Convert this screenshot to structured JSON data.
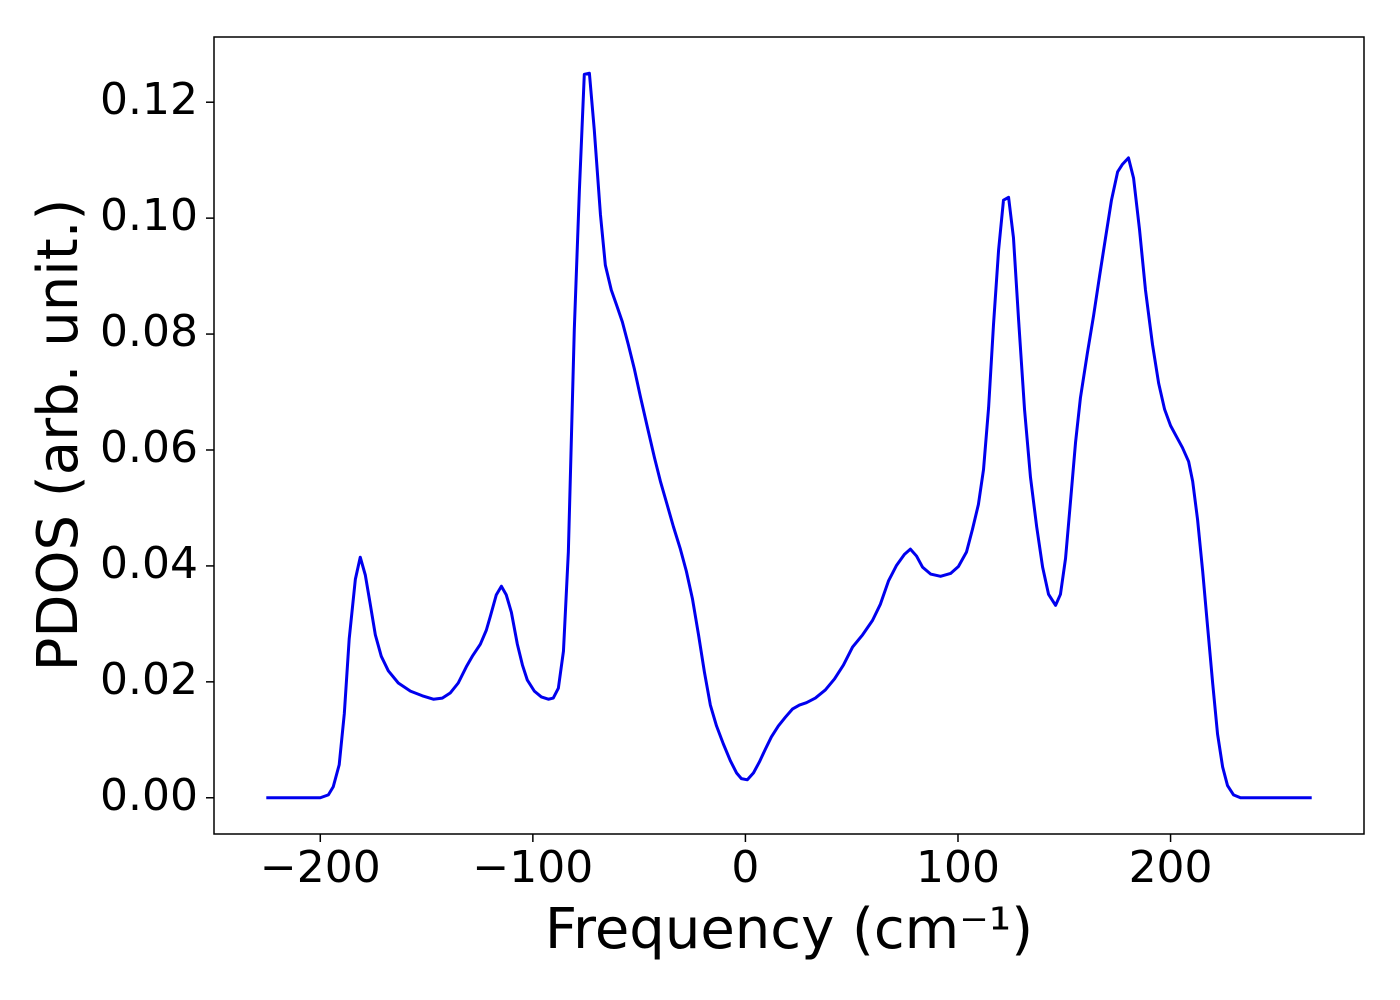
{
  "chart_data": {
    "type": "line",
    "xlabel": "Frequency (cm⁻¹)",
    "ylabel": "PDOS (arb. unit.)",
    "xlim": [
      -250,
      291
    ],
    "ylim": [
      -0.00625,
      0.13125
    ],
    "xticks": [
      {
        "value": -200,
        "label": "−200"
      },
      {
        "value": -100,
        "label": "−100"
      },
      0,
      100,
      200
    ],
    "yticks": [
      {
        "value": 0,
        "label": "0.00"
      },
      0.02,
      0.04,
      0.06,
      0.08,
      {
        "value": 0.1,
        "label": "0.10"
      },
      0.12
    ],
    "grid": false,
    "series": [
      {
        "color": "#0000ee",
        "x": [
          -225.4,
          -200,
          -196.2,
          -193.9,
          -191.1,
          -188.7,
          -186.4,
          -183.5,
          -181.2,
          -178.8,
          -176.5,
          -174.1,
          -171.3,
          -168,
          -163.3,
          -157.6,
          -152,
          -146.8,
          -142.6,
          -138.8,
          -135.1,
          -131.3,
          -128.5,
          -124.7,
          -121.9,
          -120,
          -117.2,
          -114.8,
          -112.5,
          -110.1,
          -107.3,
          -104.9,
          -102.6,
          -99.3,
          -96,
          -92.7,
          -90.4,
          -88,
          -85.6,
          -83.3,
          -80.5,
          -78.1,
          -75.8,
          -73.4,
          -71.1,
          -68.2,
          -65.9,
          -63.1,
          -60.7,
          -57.9,
          -55.1,
          -52.2,
          -49.4,
          -46.1,
          -42.8,
          -40,
          -36.7,
          -33.9,
          -30.6,
          -27.8,
          -24.9,
          -22.1,
          -19.3,
          -16.5,
          -13.6,
          -10.4,
          -7.1,
          -4.2,
          -1.9,
          0.9,
          3.8,
          6.6,
          9.4,
          12.2,
          15.5,
          18.8,
          22.1,
          25.4,
          28.7,
          32.9,
          37.6,
          41.9,
          46.1,
          50.4,
          55.1,
          59.8,
          63.5,
          67.3,
          71.1,
          74.8,
          77.6,
          80.5,
          83.3,
          87.1,
          91.8,
          96.5,
          100.2,
          104,
          106.8,
          109.6,
          112,
          114.4,
          116.7,
          119.1,
          121.4,
          123.8,
          126.1,
          128.5,
          131.3,
          134.1,
          137,
          139.8,
          142.6,
          145.9,
          148.2,
          150.6,
          152.9,
          155.3,
          157.6,
          160.9,
          163.8,
          166.6,
          169.4,
          172.2,
          175.1,
          177.4,
          180.2,
          182.6,
          185.4,
          188.2,
          191.5,
          194.4,
          197.2,
          200,
          202.8,
          205.6,
          208.5,
          210.4,
          212.7,
          215.1,
          217.4,
          219.8,
          222.1,
          224.5,
          226.8,
          229.6,
          232.9,
          266.4
        ],
        "values": [
          0,
          0,
          0.0005,
          0.0019,
          0.0057,
          0.0145,
          0.0274,
          0.0377,
          0.0415,
          0.0384,
          0.0334,
          0.0281,
          0.0244,
          0.0219,
          0.0198,
          0.0184,
          0.0176,
          0.017,
          0.0172,
          0.0181,
          0.0198,
          0.0226,
          0.0244,
          0.0265,
          0.0289,
          0.0313,
          0.035,
          0.0365,
          0.035,
          0.032,
          0.0265,
          0.0229,
          0.0203,
          0.0184,
          0.0174,
          0.017,
          0.0172,
          0.0189,
          0.0253,
          0.0424,
          0.0808,
          0.1049,
          0.1248,
          0.125,
          0.1152,
          0.1006,
          0.0919,
          0.0876,
          0.0851,
          0.0821,
          0.0782,
          0.0739,
          0.0692,
          0.0639,
          0.0587,
          0.0546,
          0.0504,
          0.0468,
          0.0429,
          0.0391,
          0.0343,
          0.0282,
          0.0217,
          0.016,
          0.0124,
          0.0093,
          0.0064,
          0.0043,
          0.0033,
          0.0031,
          0.0043,
          0.0062,
          0.0084,
          0.0105,
          0.0124,
          0.0139,
          0.0153,
          0.016,
          0.0164,
          0.0172,
          0.0186,
          0.0205,
          0.0229,
          0.026,
          0.0281,
          0.0306,
          0.0334,
          0.0374,
          0.0401,
          0.042,
          0.0429,
          0.0417,
          0.0398,
          0.0386,
          0.0382,
          0.0387,
          0.0399,
          0.0424,
          0.0463,
          0.0506,
          0.0566,
          0.0673,
          0.0816,
          0.0945,
          0.1031,
          0.1036,
          0.0966,
          0.0825,
          0.067,
          0.0553,
          0.0468,
          0.0398,
          0.0351,
          0.0332,
          0.0351,
          0.0413,
          0.051,
          0.0613,
          0.069,
          0.0768,
          0.0832,
          0.09,
          0.0966,
          0.1031,
          0.108,
          0.1093,
          0.1104,
          0.1069,
          0.098,
          0.0876,
          0.0782,
          0.0715,
          0.067,
          0.0642,
          0.0623,
          0.0604,
          0.058,
          0.0546,
          0.048,
          0.0391,
          0.0296,
          0.0198,
          0.011,
          0.0053,
          0.0021,
          0.0005,
          0,
          0
        ]
      }
    ]
  }
}
